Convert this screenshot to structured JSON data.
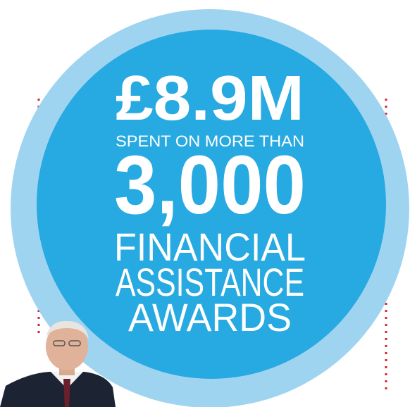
{
  "headline": "£8.9M",
  "subline": "SPENT ON MORE THAN",
  "figure": "3,000",
  "caption": [
    "FINANCIAL",
    "ASSISTANCE",
    "AWARDS"
  ]
}
